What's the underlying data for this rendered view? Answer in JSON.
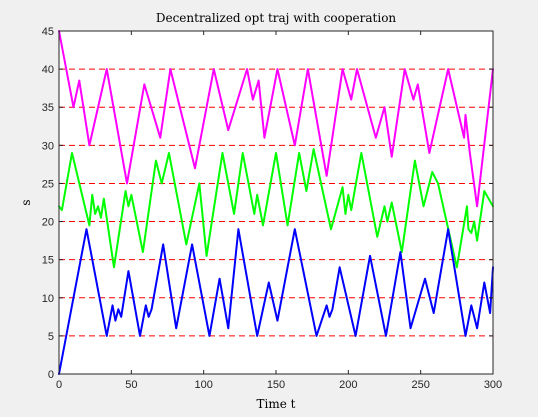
{
  "chart_data": {
    "type": "line",
    "title": "Decentralized opt traj with cooperation",
    "xlabel": "Time t",
    "ylabel": "s",
    "xlim": [
      0,
      300
    ],
    "ylim": [
      0,
      45
    ],
    "xticks": [
      0,
      50,
      100,
      150,
      200,
      250,
      300
    ],
    "yticks": [
      0,
      5,
      10,
      15,
      20,
      25,
      30,
      35,
      40,
      45
    ],
    "grid": false,
    "legend": "none",
    "reference_lines": {
      "style": "dashed",
      "color": "#ff0000",
      "values": [
        5,
        10,
        15,
        20,
        25,
        30,
        35,
        40
      ]
    },
    "series": [
      {
        "color": "#ff00ff",
        "points": [
          [
            0,
            45
          ],
          [
            10,
            35
          ],
          [
            14,
            38.5
          ],
          [
            21,
            30
          ],
          [
            33,
            40
          ],
          [
            47,
            25
          ],
          [
            59,
            38
          ],
          [
            70,
            31
          ],
          [
            77,
            40
          ],
          [
            94,
            27
          ],
          [
            107,
            40
          ],
          [
            117,
            32
          ],
          [
            130,
            40
          ],
          [
            134,
            36
          ],
          [
            138,
            38.5
          ],
          [
            142,
            31
          ],
          [
            151,
            40
          ],
          [
            163,
            30
          ],
          [
            172,
            40
          ],
          [
            185,
            26
          ],
          [
            196,
            40
          ],
          [
            202,
            36
          ],
          [
            206,
            40
          ],
          [
            219,
            31
          ],
          [
            225,
            35
          ],
          [
            230,
            28.5
          ],
          [
            239,
            40
          ],
          [
            245,
            36
          ],
          [
            248,
            38
          ],
          [
            256,
            29
          ],
          [
            269,
            40
          ],
          [
            280,
            31
          ],
          [
            281,
            34
          ],
          [
            284,
            29
          ],
          [
            289,
            22
          ],
          [
            300,
            40
          ]
        ]
      },
      {
        "color": "#00ff00",
        "points": [
          [
            0,
            22
          ],
          [
            2,
            21.5
          ],
          [
            9,
            29
          ],
          [
            21,
            19.5
          ],
          [
            23,
            23.5
          ],
          [
            25,
            21
          ],
          [
            27,
            22
          ],
          [
            29,
            20.5
          ],
          [
            31,
            23
          ],
          [
            38,
            14
          ],
          [
            46,
            24
          ],
          [
            48,
            22
          ],
          [
            50,
            23.5
          ],
          [
            58,
            16
          ],
          [
            67,
            28
          ],
          [
            71,
            25
          ],
          [
            76,
            29
          ],
          [
            88,
            17
          ],
          [
            97,
            25
          ],
          [
            102,
            15.5
          ],
          [
            113,
            29
          ],
          [
            121,
            21
          ],
          [
            127,
            29
          ],
          [
            135,
            21
          ],
          [
            137,
            23.5
          ],
          [
            141,
            19.5
          ],
          [
            150,
            29
          ],
          [
            158,
            19.5
          ],
          [
            166,
            29
          ],
          [
            171,
            24
          ],
          [
            176,
            29.5
          ],
          [
            188,
            19
          ],
          [
            196,
            24.5
          ],
          [
            198,
            21
          ],
          [
            200,
            23.5
          ],
          [
            202,
            21.5
          ],
          [
            209,
            29
          ],
          [
            220,
            18
          ],
          [
            225,
            22
          ],
          [
            227,
            20
          ],
          [
            230,
            22.5
          ],
          [
            237,
            16
          ],
          [
            246,
            28
          ],
          [
            252,
            22
          ],
          [
            258,
            26.5
          ],
          [
            262,
            25
          ],
          [
            275,
            14
          ],
          [
            282,
            22
          ],
          [
            283,
            19
          ],
          [
            285,
            18.5
          ],
          [
            287,
            20
          ],
          [
            289,
            17.5
          ],
          [
            294,
            24
          ],
          [
            300,
            22
          ]
        ]
      },
      {
        "color": "#0000ff",
        "points": [
          [
            0,
            0
          ],
          [
            19,
            19
          ],
          [
            33,
            5
          ],
          [
            37,
            9
          ],
          [
            39,
            7
          ],
          [
            41,
            8.5
          ],
          [
            43,
            7.5
          ],
          [
            48,
            13.5
          ],
          [
            56,
            5
          ],
          [
            60,
            9
          ],
          [
            62,
            7.5
          ],
          [
            64,
            8.5
          ],
          [
            72,
            17
          ],
          [
            81,
            6
          ],
          [
            92,
            17
          ],
          [
            104,
            5
          ],
          [
            111,
            12.5
          ],
          [
            117,
            6
          ],
          [
            124,
            19
          ],
          [
            137,
            5
          ],
          [
            145,
            12
          ],
          [
            151,
            7
          ],
          [
            163,
            19
          ],
          [
            178,
            5
          ],
          [
            185,
            9
          ],
          [
            187,
            7.5
          ],
          [
            189,
            8.5
          ],
          [
            194,
            14
          ],
          [
            205,
            5
          ],
          [
            215,
            15.5
          ],
          [
            226,
            5
          ],
          [
            236,
            16
          ],
          [
            243,
            6
          ],
          [
            253,
            12.5
          ],
          [
            259,
            8
          ],
          [
            269,
            19
          ],
          [
            281,
            5
          ],
          [
            285,
            9
          ],
          [
            289,
            6
          ],
          [
            294,
            12
          ],
          [
            298,
            8
          ],
          [
            300,
            14
          ]
        ]
      }
    ]
  }
}
